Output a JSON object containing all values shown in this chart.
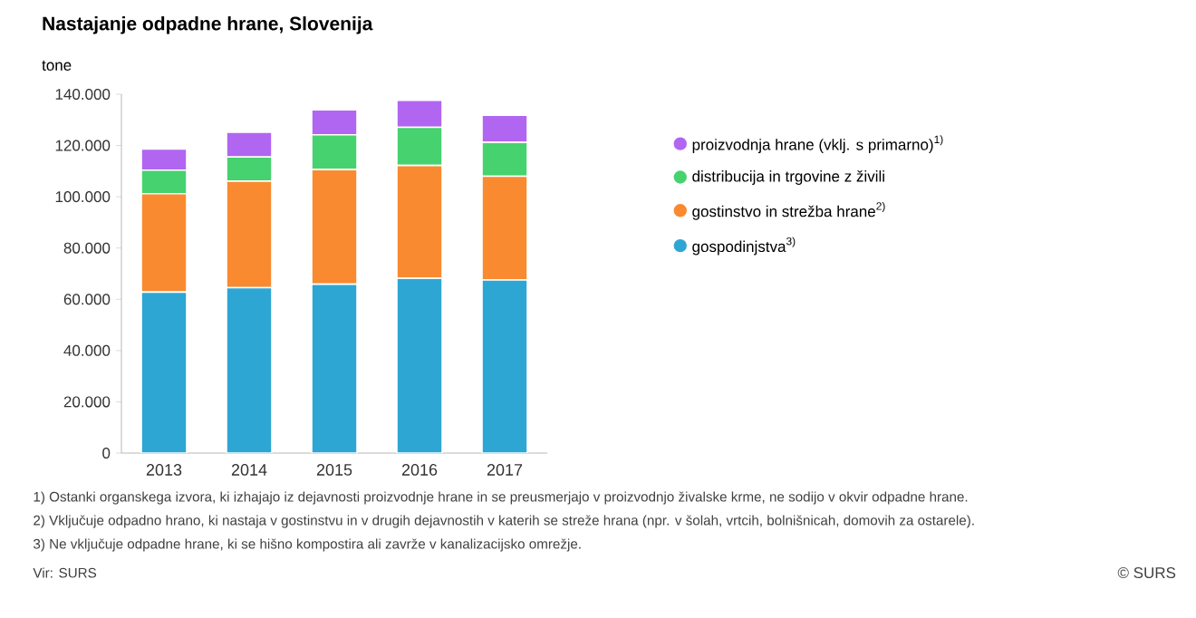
{
  "chart_data": {
    "type": "bar",
    "stacked": true,
    "title": "Nastajanje odpadne hrane, Slovenija",
    "ylabel": "tone",
    "categories": [
      "2013",
      "2014",
      "2015",
      "2016",
      "2017"
    ],
    "series": [
      {
        "name": "gospodinjstva$^{3)}$",
        "color": "#2ea6d3",
        "values": [
          62800,
          64500,
          65900,
          68200,
          67500
        ]
      },
      {
        "name": "gostinstvo in strežba hrane$^{2)}$",
        "color": "#f98a30",
        "values": [
          38400,
          41600,
          44700,
          44000,
          40500
        ]
      },
      {
        "name": "distribucija in trgovine z živili",
        "color": "#46d26f",
        "values": [
          9200,
          9400,
          13600,
          14900,
          13200
        ]
      },
      {
        "name": "proizvodnja hrane (vklj. s primarno)$^{1)}$",
        "color": "#b166f2",
        "values": [
          8200,
          9700,
          9700,
          10500,
          10600
        ]
      }
    ],
    "ylim": [
      0,
      140000
    ],
    "yticks": [
      0,
      {
        "value": 20000,
        "label": "20.000"
      },
      {
        "value": 40000,
        "label": "40.000"
      },
      {
        "value": 60000,
        "label": "60.000"
      },
      {
        "value": 80000,
        "label": "80.000"
      },
      {
        "value": 100000,
        "label": "100.000"
      },
      {
        "value": 120000,
        "label": "120.000"
      },
      {
        "value": 140000,
        "label": "140.000"
      }
    ],
    "grid": false,
    "legend": "right",
    "annotations": [
      "1) Ostanki organskega izvora, ki izhajajo iz dejavnosti proizvodnje hrane in se preusmerjajo v proizvodnjo živalske krme, ne sodijo v okvir odpadne hrane.",
      "2) Vključuje odpadno hrano, ki nastaja v gostinstvu in v drugih dejavnostih v katerih se streže hrana (npr. v šolah, vrtcih, bolnišnicah, domovih za ostarele).",
      "3) Ne vključuje odpadne hrane, ki se hišno kompostira ali zavrže v kanalizacijsko omrežje.",
      "Vir: SURS",
      "© SURS"
    ]
  }
}
